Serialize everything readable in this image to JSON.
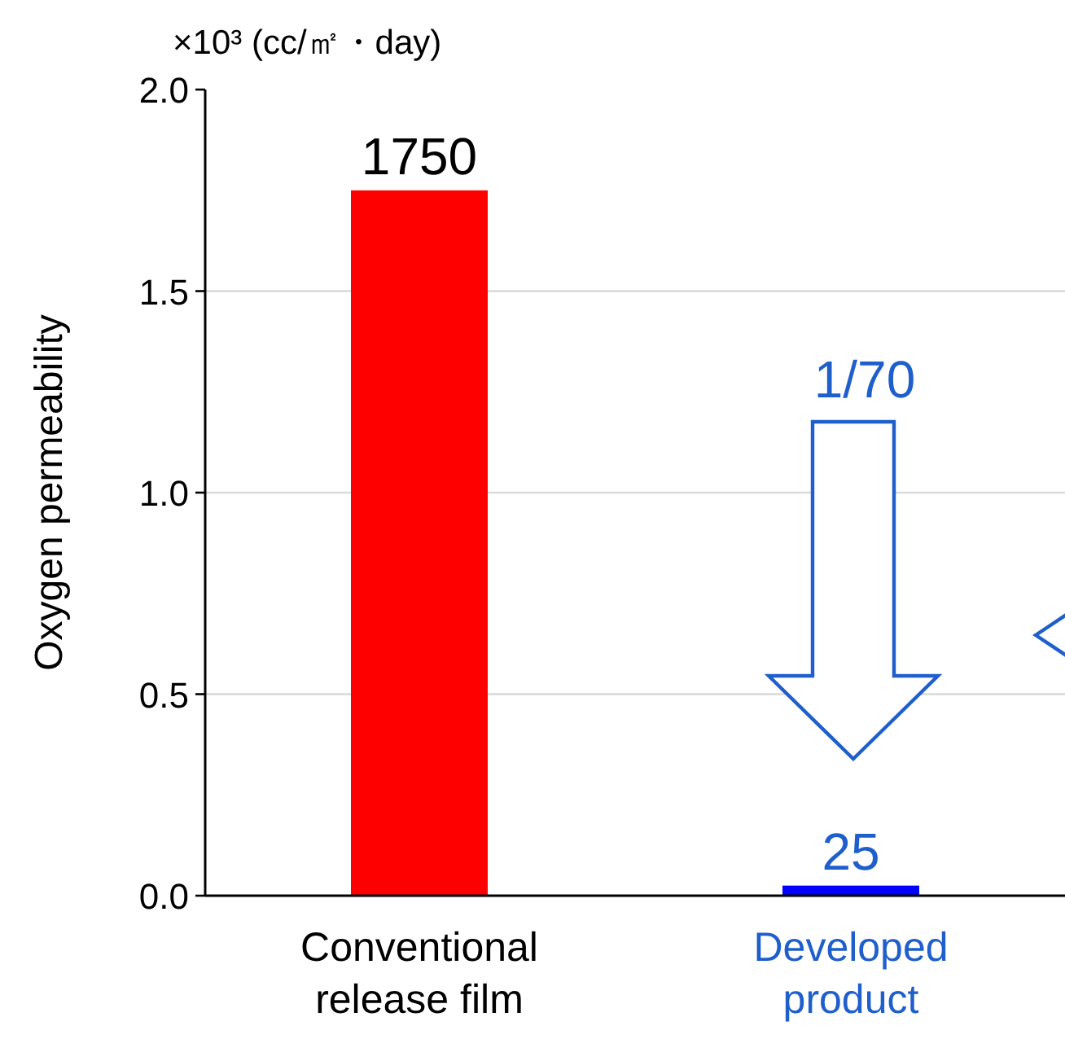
{
  "chart_data": {
    "type": "bar",
    "ylabel": "Oxygen permeability",
    "categories": [
      "Conventional\nrelease film",
      "Developed\nproduct"
    ],
    "values": [
      1.75,
      0.025
    ],
    "colors": [
      "#ff0000",
      "#0000ff"
    ],
    "ylim": [
      0,
      2.0
    ],
    "yticks": [
      {
        "value": 0,
        "label": "0.0"
      },
      {
        "value": 0.5,
        "label": "0.5"
      },
      {
        "value": 1.0,
        "label": "1.0"
      },
      {
        "value": 1.5,
        "label": "1.5"
      },
      {
        "value": 2.0,
        "label": "2.0"
      }
    ],
    "grid": "y",
    "annotations": [
      "×10³ (cc/㎡・day)",
      "1/70",
      {
        "text": "1750",
        "x": "Conventional\nrelease film",
        "y": 1.75
      },
      {
        "text": "25",
        "x": "Developed\nproduct",
        "y": 0.025
      }
    ]
  }
}
